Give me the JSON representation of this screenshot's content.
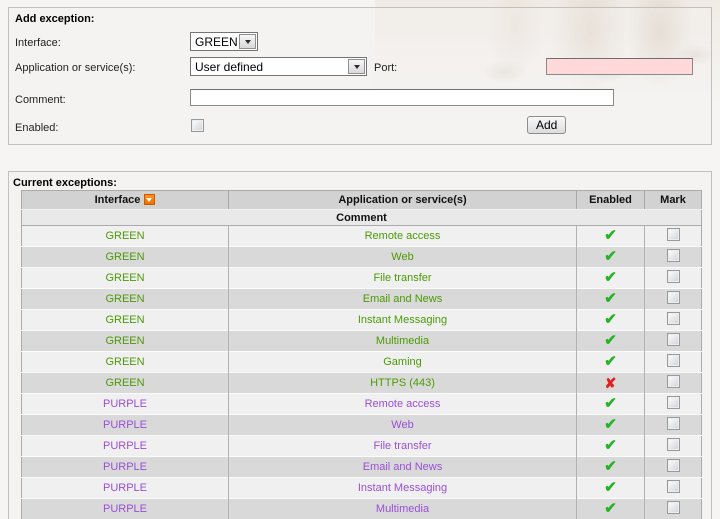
{
  "form": {
    "title": "Add exception:",
    "interface": {
      "label": "Interface:",
      "value": "GREEN"
    },
    "application": {
      "label": "Application or service(s):",
      "value": "User defined"
    },
    "port": {
      "label": "Port:",
      "value": ""
    },
    "comment": {
      "label": "Comment:",
      "value": ""
    },
    "enabled": {
      "label": "Enabled:",
      "checked": false
    },
    "add_button": "Add"
  },
  "table": {
    "title": "Current exceptions:",
    "headers": {
      "interface": "Interface",
      "application": "Application or service(s)",
      "enabled": "Enabled",
      "mark": "Mark",
      "comment": "Comment"
    },
    "rows": [
      {
        "interface": "GREEN",
        "service": "Remote access",
        "enabled": true,
        "marked": false
      },
      {
        "interface": "GREEN",
        "service": "Web",
        "enabled": true,
        "marked": false
      },
      {
        "interface": "GREEN",
        "service": "File transfer",
        "enabled": true,
        "marked": false
      },
      {
        "interface": "GREEN",
        "service": "Email and News",
        "enabled": true,
        "marked": false
      },
      {
        "interface": "GREEN",
        "service": "Instant Messaging",
        "enabled": true,
        "marked": false
      },
      {
        "interface": "GREEN",
        "service": "Multimedia",
        "enabled": true,
        "marked": false
      },
      {
        "interface": "GREEN",
        "service": "Gaming",
        "enabled": true,
        "marked": false
      },
      {
        "interface": "GREEN",
        "service": "HTTPS (443)",
        "enabled": false,
        "marked": false
      },
      {
        "interface": "PURPLE",
        "service": "Remote access",
        "enabled": true,
        "marked": false
      },
      {
        "interface": "PURPLE",
        "service": "Web",
        "enabled": true,
        "marked": false
      },
      {
        "interface": "PURPLE",
        "service": "File transfer",
        "enabled": true,
        "marked": false
      },
      {
        "interface": "PURPLE",
        "service": "Email and News",
        "enabled": true,
        "marked": false
      },
      {
        "interface": "PURPLE",
        "service": "Instant Messaging",
        "enabled": true,
        "marked": false
      },
      {
        "interface": "PURPLE",
        "service": "Multimedia",
        "enabled": true,
        "marked": false
      }
    ]
  },
  "icons": {
    "sort_indicator": "triangle-down",
    "enabled_glyph": "✔",
    "disabled_glyph": "✘"
  },
  "colors": {
    "green_zone": "#4c9a05",
    "purple_zone": "#9a4fd6",
    "check_green": "#27b327",
    "x_red": "#e02020",
    "sort_orange": "#f07000",
    "port_field_pink": "#ffd9d9",
    "row_light": "#f0f0f0",
    "row_dark": "#d9d9d9",
    "header_gray": "#d2d2d2"
  }
}
